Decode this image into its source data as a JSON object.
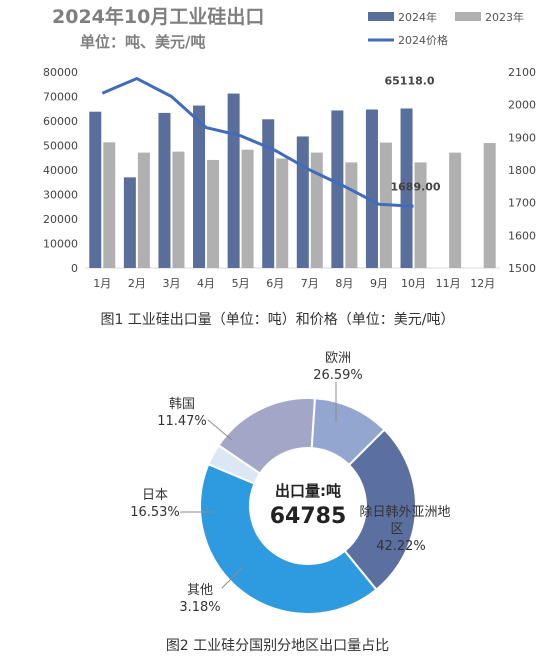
{
  "chart_data": [
    {
      "type": "bar",
      "title": "2024年10月工业硅出口",
      "subtitle": "单位：吨、美元/吨",
      "caption": "图1 工业硅出口量（单位：吨）和价格（单位：美元/吨）",
      "categories": [
        "1月",
        "2月",
        "3月",
        "4月",
        "5月",
        "6月",
        "7月",
        "8月",
        "9月",
        "10月",
        "11月",
        "12月"
      ],
      "series": [
        {
          "name": "2024年",
          "type": "bar",
          "axis": "left",
          "values": [
            63800,
            37000,
            63300,
            66300,
            71200,
            60700,
            53700,
            64300,
            64700,
            65118,
            null,
            null
          ]
        },
        {
          "name": "2023年",
          "type": "bar",
          "axis": "left",
          "values": [
            51300,
            47100,
            47500,
            44100,
            48300,
            44700,
            47100,
            43100,
            51200,
            43100,
            47100,
            51000
          ]
        },
        {
          "name": "2024价格",
          "type": "line",
          "axis": "right",
          "values": [
            2035,
            2080,
            2025,
            1930,
            1905,
            1860,
            1800,
            1750,
            1695,
            1689,
            null,
            null
          ]
        }
      ],
      "yleft": {
        "min": 0,
        "max": 80000,
        "ticks": [
          0,
          10000,
          20000,
          30000,
          40000,
          50000,
          60000,
          70000,
          80000
        ]
      },
      "yright": {
        "min": 1500,
        "max": 2100,
        "ticks": [
          1500,
          1600,
          1700,
          1800,
          1900,
          2000,
          2100
        ]
      },
      "annotations": [
        {
          "text": "65118.0",
          "category": "10月",
          "series": "2024年"
        },
        {
          "text": "1689.00",
          "category": "10月",
          "series": "2024价格"
        }
      ],
      "legend_position": "top-right",
      "colors": {
        "bar2024": "#5a6e9c",
        "bar2023": "#b0b0b0",
        "line": "#3f6cbb"
      }
    },
    {
      "type": "pie",
      "style": "donut",
      "caption": "图2 工业硅分国别分地区出口量占比",
      "center_label": "出口量:吨",
      "center_value": "64785",
      "slices": [
        {
          "name": "欧洲",
          "pct": "26.59%",
          "value": 26.59,
          "color": "#5c6fa1"
        },
        {
          "name": "除日韩外亚洲地区",
          "pct": "42.22%",
          "value": 42.22,
          "color": "#2e9be0"
        },
        {
          "name": "其他",
          "pct": "3.18%",
          "value": 3.18,
          "color": "#dde7f3"
        },
        {
          "name": "日本",
          "pct": "16.53%",
          "value": 16.53,
          "color": "#a3a6c6"
        },
        {
          "name": "韩国",
          "pct": "11.47%",
          "value": 11.47,
          "color": "#92a6cf"
        }
      ]
    }
  ]
}
